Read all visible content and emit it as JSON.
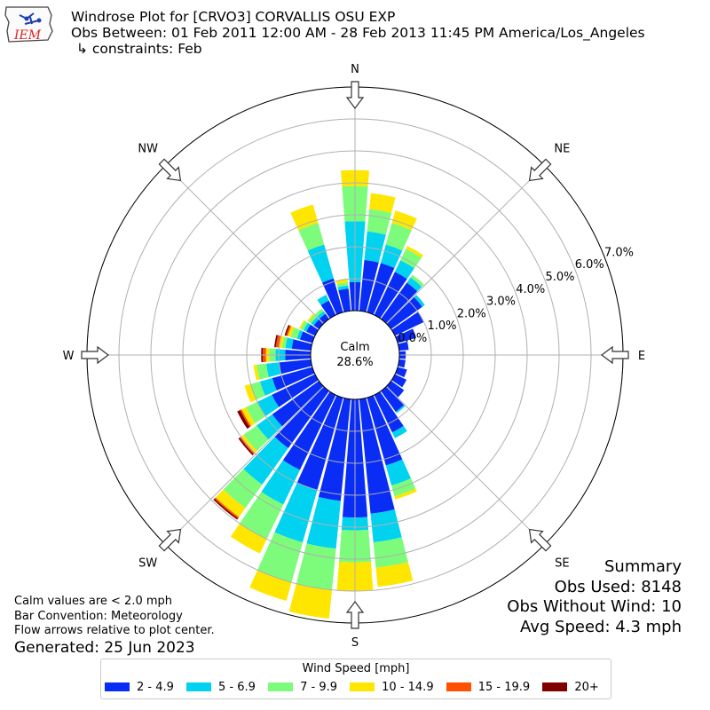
{
  "header": {
    "title": "Windrose Plot for [CRVO3] CORVALLIS OSU EXP",
    "period": "Obs Between: 01 Feb 2011 12:00 AM - 28 Feb 2013 11:45 PM America/Los_Angeles",
    "constraints": "↳ constraints: Feb",
    "logo_text": "IEM"
  },
  "summary": {
    "title": "Summary",
    "obs_used": "Obs Used: 8148",
    "obs_without_wind": "Obs Without Wind: 10",
    "avg_speed": "Avg Speed: 4.3 mph"
  },
  "notes": {
    "calm": "Calm values are < 2.0 mph",
    "convention": "Bar Convention: Meteorology",
    "flow": "Flow arrows relative to plot center.",
    "generated": "Generated: 25 Jun 2023"
  },
  "legend": {
    "title": "Wind Speed [mph]",
    "items": [
      {
        "label": "2 - 4.9",
        "color": "#0a2df5"
      },
      {
        "label": "5 - 6.9",
        "color": "#00d2f0"
      },
      {
        "label": "7 - 9.9",
        "color": "#7cfc7a"
      },
      {
        "label": "10 - 14.9",
        "color": "#ffe600"
      },
      {
        "label": "15 - 19.9",
        "color": "#ff4f00"
      },
      {
        "label": "20+",
        "color": "#800000"
      }
    ]
  },
  "chart_data": {
    "type": "windrose",
    "calm_label": "Calm",
    "calm_value": "28.6%",
    "calm_percent": 28.6,
    "radial_ticks": [
      "0.0%",
      "1.0%",
      "2.0%",
      "3.0%",
      "4.0%",
      "5.0%",
      "6.0%",
      "7.0%"
    ],
    "rmax": 7.0,
    "compass": [
      "N",
      "NE",
      "E",
      "SE",
      "S",
      "SW",
      "W",
      "NW"
    ],
    "speed_bins": [
      "2 - 4.9",
      "5 - 6.9",
      "7 - 9.9",
      "10 - 14.9",
      "15 - 19.9",
      "20+"
    ],
    "sector_width_deg": 10,
    "sectors": [
      {
        "dir": 0,
        "cum": [
          0.9,
          2.8,
          3.9,
          4.4,
          4.4,
          4.4
        ]
      },
      {
        "dir": 10,
        "cum": [
          1.6,
          2.5,
          3.2,
          3.7,
          3.7,
          3.7
        ]
      },
      {
        "dir": 20,
        "cum": [
          1.6,
          2.2,
          2.9,
          3.3,
          3.3,
          3.3
        ]
      },
      {
        "dir": 30,
        "cum": [
          1.5,
          1.9,
          2.3,
          2.4,
          2.4,
          2.4
        ]
      },
      {
        "dir": 40,
        "cum": [
          1.4,
          1.6,
          1.7,
          1.7,
          1.7,
          1.7
        ]
      },
      {
        "dir": 50,
        "cum": [
          1.2,
          1.3,
          1.3,
          1.3,
          1.3,
          1.3
        ]
      },
      {
        "dir": 60,
        "cum": [
          1.0,
          1.0,
          1.0,
          1.0,
          1.0,
          1.0
        ]
      },
      {
        "dir": 70,
        "cum": [
          0.6,
          0.6,
          0.6,
          0.6,
          0.6,
          0.6
        ]
      },
      {
        "dir": 80,
        "cum": [
          0.3,
          0.3,
          0.3,
          0.3,
          0.3,
          0.3
        ]
      },
      {
        "dir": 90,
        "cum": [
          0.2,
          0.2,
          0.2,
          0.2,
          0.2,
          0.2
        ]
      },
      {
        "dir": 100,
        "cum": [
          0.2,
          0.2,
          0.2,
          0.2,
          0.2,
          0.2
        ]
      },
      {
        "dir": 110,
        "cum": [
          0.3,
          0.3,
          0.3,
          0.3,
          0.3,
          0.3
        ]
      },
      {
        "dir": 120,
        "cum": [
          0.4,
          0.4,
          0.4,
          0.4,
          0.4,
          0.4
        ]
      },
      {
        "dir": 130,
        "cum": [
          0.5,
          0.5,
          0.5,
          0.5,
          0.5,
          0.5
        ]
      },
      {
        "dir": 140,
        "cum": [
          0.8,
          0.85,
          0.85,
          0.85,
          0.85,
          0.85
        ]
      },
      {
        "dir": 150,
        "cum": [
          1.3,
          1.5,
          1.5,
          1.5,
          1.5,
          1.5
        ]
      },
      {
        "dir": 160,
        "cum": [
          2.2,
          2.85,
          3.2,
          3.3,
          3.3,
          3.3
        ]
      },
      {
        "dir": 170,
        "cum": [
          3.6,
          4.5,
          5.3,
          5.9,
          5.9,
          5.9
        ]
      },
      {
        "dir": 180,
        "cum": [
          3.7,
          4.1,
          5.1,
          6.0,
          6.0,
          6.0
        ]
      },
      {
        "dir": 190,
        "cum": [
          3.2,
          4.7,
          6.0,
          6.9,
          6.9,
          6.9
        ]
      },
      {
        "dir": 200,
        "cum": [
          3.0,
          4.7,
          6.0,
          6.6,
          6.6,
          6.6
        ]
      },
      {
        "dir": 210,
        "cum": [
          2.6,
          3.8,
          5.0,
          5.5,
          5.5,
          5.5
        ]
      },
      {
        "dir": 220,
        "cum": [
          2.2,
          3.6,
          4.5,
          4.85,
          4.9,
          4.95
        ]
      },
      {
        "dir": 230,
        "cum": [
          1.8,
          2.4,
          2.9,
          3.0,
          3.05,
          3.1
        ]
      },
      {
        "dir": 240,
        "cum": [
          1.5,
          2.0,
          2.4,
          2.55,
          2.6,
          2.7
        ]
      },
      {
        "dir": 250,
        "cum": [
          1.3,
          1.7,
          2.0,
          2.2,
          2.2,
          2.2
        ]
      },
      {
        "dir": 260,
        "cum": [
          1.0,
          1.4,
          1.7,
          1.8,
          1.8,
          1.8
        ]
      },
      {
        "dir": 270,
        "cum": [
          0.8,
          1.1,
          1.3,
          1.4,
          1.5,
          1.55
        ]
      },
      {
        "dir": 280,
        "cum": [
          0.6,
          0.8,
          0.9,
          1.0,
          1.1,
          1.15
        ]
      },
      {
        "dir": 290,
        "cum": [
          0.4,
          0.5,
          0.7,
          0.8,
          0.85,
          0.9
        ]
      },
      {
        "dir": 300,
        "cum": [
          0.3,
          0.4,
          0.5,
          0.55,
          0.55,
          0.55
        ]
      },
      {
        "dir": 310,
        "cum": [
          0.2,
          0.3,
          0.4,
          0.45,
          0.45,
          0.45
        ]
      },
      {
        "dir": 320,
        "cum": [
          0.2,
          0.3,
          0.4,
          0.4,
          0.4,
          0.4
        ]
      },
      {
        "dir": 330,
        "cum": [
          0.5,
          0.7,
          0.7,
          0.7,
          0.7,
          0.7
        ]
      },
      {
        "dir": 340,
        "cum": [
          1.1,
          2.2,
          2.9,
          3.5,
          3.5,
          3.5
        ]
      },
      {
        "dir": 350,
        "cum": [
          0.7,
          0.8,
          0.9,
          1.0,
          1.0,
          1.0
        ]
      }
    ]
  }
}
